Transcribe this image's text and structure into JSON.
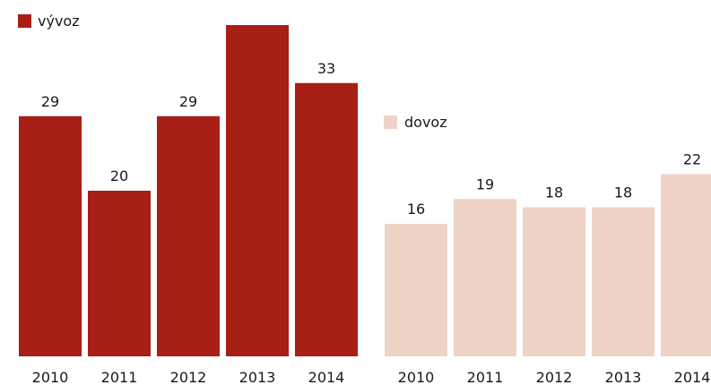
{
  "chart_data": [
    {
      "type": "bar",
      "categories": [
        "2010",
        "2011",
        "2012",
        "2013",
        "2014"
      ],
      "series": [
        {
          "name": "vývoz",
          "values": [
            29,
            20,
            29,
            40,
            33
          ]
        }
      ],
      "data_labels": [
        "29",
        "20",
        "29",
        "",
        "33"
      ],
      "color": "#a81f16",
      "legend_position": "top-left"
    },
    {
      "type": "bar",
      "categories": [
        "2010",
        "2011",
        "2012",
        "2013",
        "2014"
      ],
      "series": [
        {
          "name": "dovoz",
          "values": [
            16,
            19,
            18,
            18,
            22
          ]
        }
      ],
      "data_labels": [
        "16",
        "19",
        "18",
        "18",
        "22"
      ],
      "color": "#efd3c7",
      "legend_position": "top-left"
    }
  ]
}
